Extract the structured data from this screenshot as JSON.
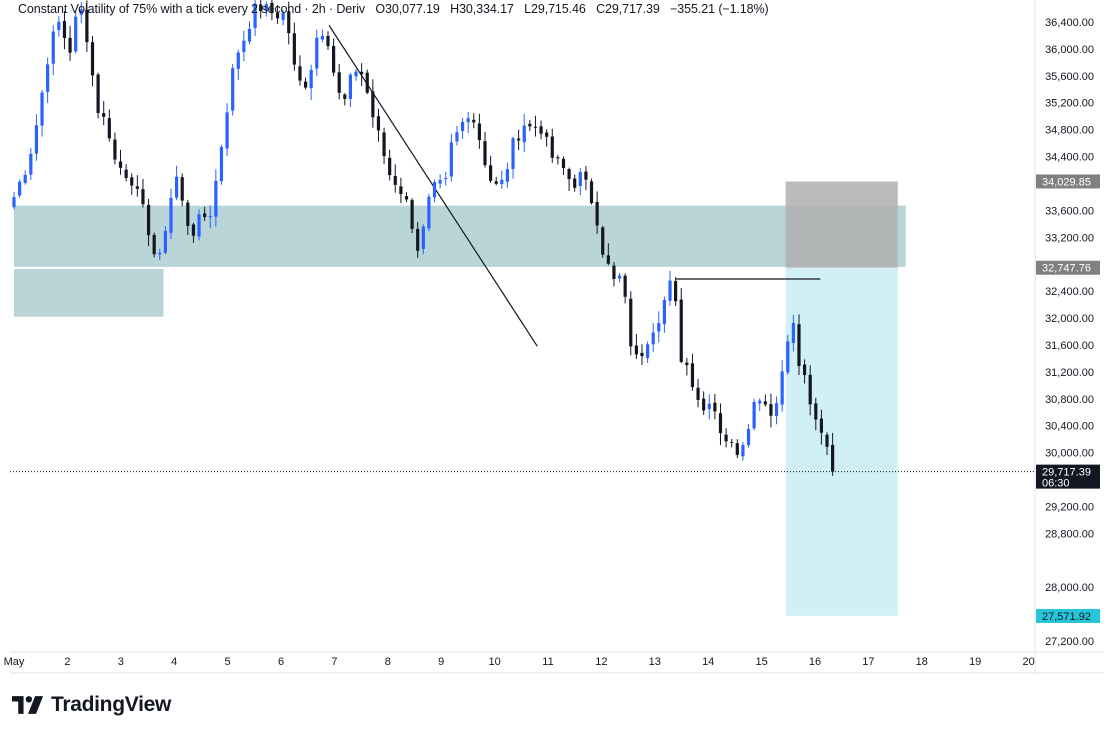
{
  "legend": {
    "title": "Constant Volatility of 75% with a tick every 2 second · 2h · Deriv",
    "open": "O30,077.19",
    "high": "H30,334.17",
    "low": "L29,715.46",
    "close": "C29,717.39",
    "change": "−355.21 (−1.18%)"
  },
  "brand": {
    "name": "TradingView"
  },
  "colors": {
    "up": "#2962ff",
    "down": "#131722",
    "zone": "#b9d5d8",
    "target_zone": "#d1f0f6",
    "stop_zone": "#b0b0b0",
    "target_badge": "#26c6da",
    "stop_badge": "#808080"
  },
  "chart_data": {
    "type": "candlestick",
    "x_labels": [
      "May",
      "2",
      "3",
      "4",
      "5",
      "6",
      "7",
      "8",
      "9",
      "10",
      "11",
      "12",
      "13",
      "14",
      "15",
      "16",
      "17",
      "18",
      "19",
      "20"
    ],
    "y_ticks": [
      "36,400.00",
      "36,000.00",
      "35,600.00",
      "35,200.00",
      "34,800.00",
      "34,400.00",
      "33,600.00",
      "33,200.00",
      "32,400.00",
      "32,000.00",
      "31,600.00",
      "31,200.00",
      "30,800.00",
      "30,400.00",
      "30,000.00",
      "29,200.00",
      "28,800.00",
      "28,000.00",
      "27,200.00"
    ],
    "y_tick_values": [
      36400,
      36000,
      35600,
      35200,
      34800,
      34400,
      33600,
      33200,
      32400,
      32000,
      31600,
      31200,
      30800,
      30400,
      30000,
      29200,
      28800,
      28000,
      27200
    ],
    "ylim": [
      26830,
      36640
    ],
    "xlim": [
      1,
      21
    ],
    "price_line": {
      "value": 29717.39,
      "label": "29,717.39",
      "countdown": "06:30"
    },
    "stop_level": {
      "value": 34029.85,
      "label": "34,029.85"
    },
    "entry_level": {
      "value": 32747.76,
      "label": "32,747.76"
    },
    "target_level": {
      "value": 27571.92,
      "label": "27,571.92"
    },
    "zones": [
      {
        "x0": 1.0,
        "x1": 17.7,
        "y0": 32760,
        "y1": 33670
      },
      {
        "x0": 1.0,
        "x1": 3.8,
        "y0": 32020,
        "y1": 32730
      }
    ],
    "trendline": {
      "x0": 6.9,
      "y0": 36350,
      "x1": 10.8,
      "y1": 31580
    },
    "swing_line": {
      "x0": 13.4,
      "x1": 16.1,
      "y": 32580
    },
    "position": {
      "x0": 15.45,
      "x1": 17.55,
      "stop": 34029.85,
      "entry": 32747.76,
      "target": 27571.92
    },
    "anchors": [
      [
        1.0,
        33800
      ],
      [
        1.2,
        34200
      ],
      [
        1.35,
        34600
      ],
      [
        1.5,
        35200
      ],
      [
        1.6,
        35800
      ],
      [
        1.75,
        36200
      ],
      [
        1.9,
        36500
      ],
      [
        2.0,
        35800
      ],
      [
        2.15,
        36400
      ],
      [
        2.3,
        36600
      ],
      [
        2.45,
        35700
      ],
      [
        2.6,
        35000
      ],
      [
        2.75,
        34900
      ],
      [
        2.9,
        34300
      ],
      [
        3.05,
        34200
      ],
      [
        3.2,
        34100
      ],
      [
        3.35,
        33700
      ],
      [
        3.5,
        33400
      ],
      [
        3.7,
        32700
      ],
      [
        3.9,
        33700
      ],
      [
        4.05,
        34100
      ],
      [
        4.2,
        33500
      ],
      [
        4.35,
        33300
      ],
      [
        4.55,
        33500
      ],
      [
        4.7,
        33600
      ],
      [
        4.85,
        34400
      ],
      [
        5.0,
        35200
      ],
      [
        5.15,
        35900
      ],
      [
        5.3,
        36150
      ],
      [
        5.45,
        36500
      ],
      [
        5.6,
        36640
      ],
      [
        5.75,
        36550
      ],
      [
        6.1,
        36500
      ],
      [
        6.25,
        35700
      ],
      [
        6.4,
        35400
      ],
      [
        6.55,
        35700
      ],
      [
        6.7,
        36300
      ],
      [
        6.85,
        36300
      ],
      [
        7.0,
        35600
      ],
      [
        7.15,
        35100
      ],
      [
        7.3,
        35500
      ],
      [
        7.45,
        35800
      ],
      [
        7.6,
        35400
      ],
      [
        7.75,
        34900
      ],
      [
        7.9,
        34500
      ],
      [
        8.05,
        34100
      ],
      [
        8.2,
        34000
      ],
      [
        8.35,
        33700
      ],
      [
        8.5,
        33300
      ],
      [
        8.6,
        32900
      ],
      [
        8.7,
        33500
      ],
      [
        8.8,
        33800
      ],
      [
        8.95,
        34000
      ],
      [
        9.05,
        33800
      ],
      [
        9.2,
        34600
      ],
      [
        9.35,
        34800
      ],
      [
        9.5,
        35100
      ],
      [
        9.65,
        34900
      ],
      [
        9.8,
        34400
      ],
      [
        9.95,
        34000
      ],
      [
        10.1,
        33900
      ],
      [
        10.25,
        34300
      ],
      [
        10.4,
        34700
      ],
      [
        10.55,
        34900
      ],
      [
        10.7,
        34800
      ],
      [
        10.85,
        34900
      ],
      [
        11.0,
        34500
      ],
      [
        11.15,
        34300
      ],
      [
        11.3,
        34200
      ],
      [
        11.45,
        34000
      ],
      [
        11.6,
        34100
      ],
      [
        11.75,
        33900
      ],
      [
        11.9,
        33600
      ],
      [
        12.0,
        33100
      ],
      [
        12.15,
        32700
      ],
      [
        12.25,
        32500
      ],
      [
        12.35,
        32600
      ],
      [
        12.5,
        32000
      ],
      [
        12.6,
        31300
      ],
      [
        12.75,
        31500
      ],
      [
        12.9,
        31800
      ],
      [
        13.05,
        32000
      ],
      [
        13.2,
        32300
      ],
      [
        13.35,
        32600
      ],
      [
        13.45,
        31500
      ],
      [
        13.6,
        31300
      ],
      [
        13.75,
        31000
      ],
      [
        13.9,
        30600
      ],
      [
        14.05,
        30900
      ],
      [
        14.2,
        30400
      ],
      [
        14.35,
        30200
      ],
      [
        14.5,
        30000
      ],
      [
        14.65,
        30200
      ],
      [
        14.8,
        30600
      ],
      [
        14.95,
        30900
      ],
      [
        15.1,
        30700
      ],
      [
        15.25,
        30600
      ],
      [
        15.4,
        31300
      ],
      [
        15.55,
        32100
      ],
      [
        15.7,
        31300
      ],
      [
        15.85,
        31000
      ],
      [
        16.0,
        30400
      ],
      [
        16.15,
        30200
      ],
      [
        16.3,
        29900
      ],
      [
        16.4,
        29717
      ]
    ]
  }
}
